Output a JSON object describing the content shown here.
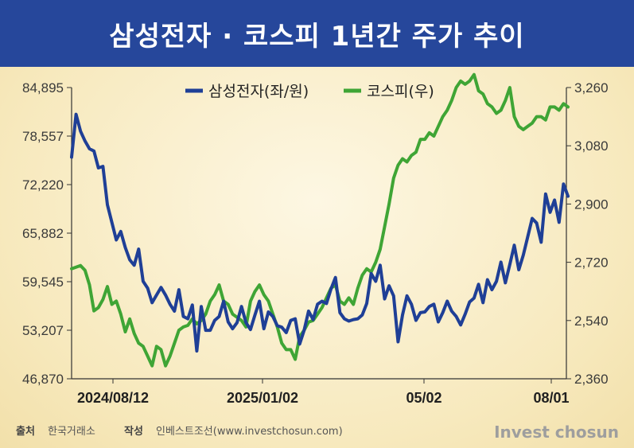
{
  "title": "삼성전자 · 코스피 1년간 주가 추이",
  "chart_data": {
    "type": "line",
    "x_labels": [
      "2024/08/12",
      "2025/01/02",
      "05/02",
      "08/01"
    ],
    "series": [
      {
        "name": "삼성전자(좌/원)",
        "axis": "left",
        "color": "#1f3f96",
        "values": [
          75800,
          81400,
          79200,
          77900,
          76900,
          76600,
          74400,
          74600,
          69600,
          67300,
          65000,
          66100,
          64000,
          62400,
          61700,
          63800,
          59600,
          58700,
          56800,
          57800,
          58800,
          57800,
          56600,
          55700,
          58500,
          55000,
          54700,
          56500,
          50500,
          56300,
          53200,
          53200,
          54500,
          55000,
          57000,
          54300,
          53400,
          54200,
          56300,
          54200,
          53300,
          55200,
          57000,
          53400,
          55600,
          55000,
          53800,
          53600,
          52900,
          54500,
          54700,
          51400,
          53200,
          55700,
          54600,
          56600,
          57000,
          56700,
          58600,
          60100,
          55500,
          54700,
          54400,
          54600,
          54700,
          55200,
          56700,
          60600,
          59600,
          61700,
          57300,
          59000,
          57700,
          51700,
          55200,
          57700,
          56600,
          54500,
          55500,
          55600,
          56300,
          56600,
          54300,
          55500,
          57000,
          55700,
          55000,
          53900,
          55300,
          56900,
          57400,
          59200,
          56800,
          59800,
          58500,
          59600,
          62100,
          59400,
          61800,
          64300,
          61100,
          63000,
          65400,
          67800,
          67200,
          64700,
          71000,
          68600,
          70200,
          67300,
          72300,
          70700
        ]
      },
      {
        "name": "코스피(우)",
        "axis": "right",
        "color": "#3fa535",
        "values": [
          2700,
          2705,
          2710,
          2695,
          2650,
          2570,
          2580,
          2605,
          2645,
          2590,
          2600,
          2560,
          2505,
          2545,
          2500,
          2470,
          2460,
          2430,
          2400,
          2460,
          2450,
          2400,
          2430,
          2470,
          2510,
          2520,
          2525,
          2545,
          2530,
          2540,
          2560,
          2600,
          2620,
          2650,
          2600,
          2590,
          2560,
          2550,
          2540,
          2520,
          2600,
          2630,
          2650,
          2620,
          2600,
          2560,
          2520,
          2470,
          2450,
          2450,
          2420,
          2490,
          2510,
          2535,
          2540,
          2560,
          2580,
          2610,
          2640,
          2650,
          2600,
          2590,
          2610,
          2590,
          2640,
          2680,
          2700,
          2690,
          2720,
          2760,
          2830,
          2900,
          2980,
          3020,
          3040,
          3030,
          3050,
          3060,
          3100,
          3100,
          3120,
          3110,
          3140,
          3170,
          3190,
          3220,
          3260,
          3280,
          3270,
          3280,
          3300,
          3250,
          3240,
          3210,
          3200,
          3180,
          3190,
          3220,
          3260,
          3170,
          3140,
          3130,
          3140,
          3150,
          3170,
          3170,
          3160,
          3200,
          3200,
          3190,
          3210,
          3200
        ]
      }
    ],
    "left_axis": {
      "ticks": [
        "84,895",
        "78,557",
        "72,220",
        "65,882",
        "59,545",
        "53,207",
        "46,870"
      ],
      "range": [
        46870,
        84895
      ]
    },
    "right_axis": {
      "ticks": [
        "3,260",
        "3,080",
        "2,900",
        "2,720",
        "2,540",
        "2,360"
      ],
      "range": [
        2360,
        3260
      ]
    },
    "legend_position": "top-center",
    "grid": false
  },
  "footer": {
    "source_label": "출처",
    "source": "한국거래소",
    "author_label": "작성",
    "author": "인베스트조선(www.investchosun.com)"
  },
  "brand": "Invest chosun"
}
